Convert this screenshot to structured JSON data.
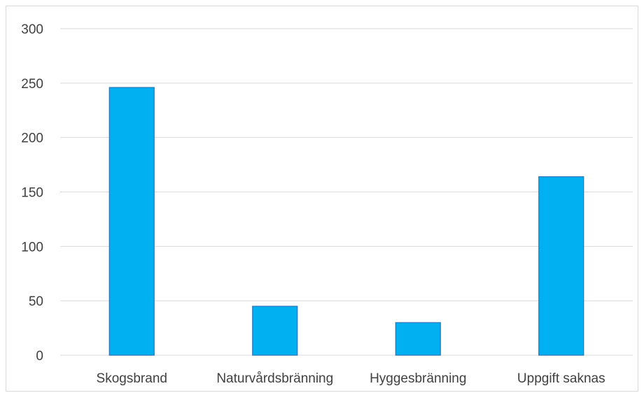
{
  "chart_data": {
    "type": "bar",
    "categories": [
      "Skogsbrand",
      "Naturvårdsbränning",
      "Hyggesbränning",
      "Uppgift saknas"
    ],
    "values": [
      246,
      45,
      30,
      164
    ],
    "title": "",
    "xlabel": "",
    "ylabel": "",
    "ylim": [
      0,
      300
    ],
    "yticks": [
      0,
      50,
      100,
      150,
      200,
      250,
      300
    ],
    "grid": true,
    "legend": "none",
    "colors": {
      "bar_fill": "#00b0f0",
      "bar_edge": "#2e75b6",
      "grid": "#d9d9d9",
      "text": "#404040"
    }
  }
}
